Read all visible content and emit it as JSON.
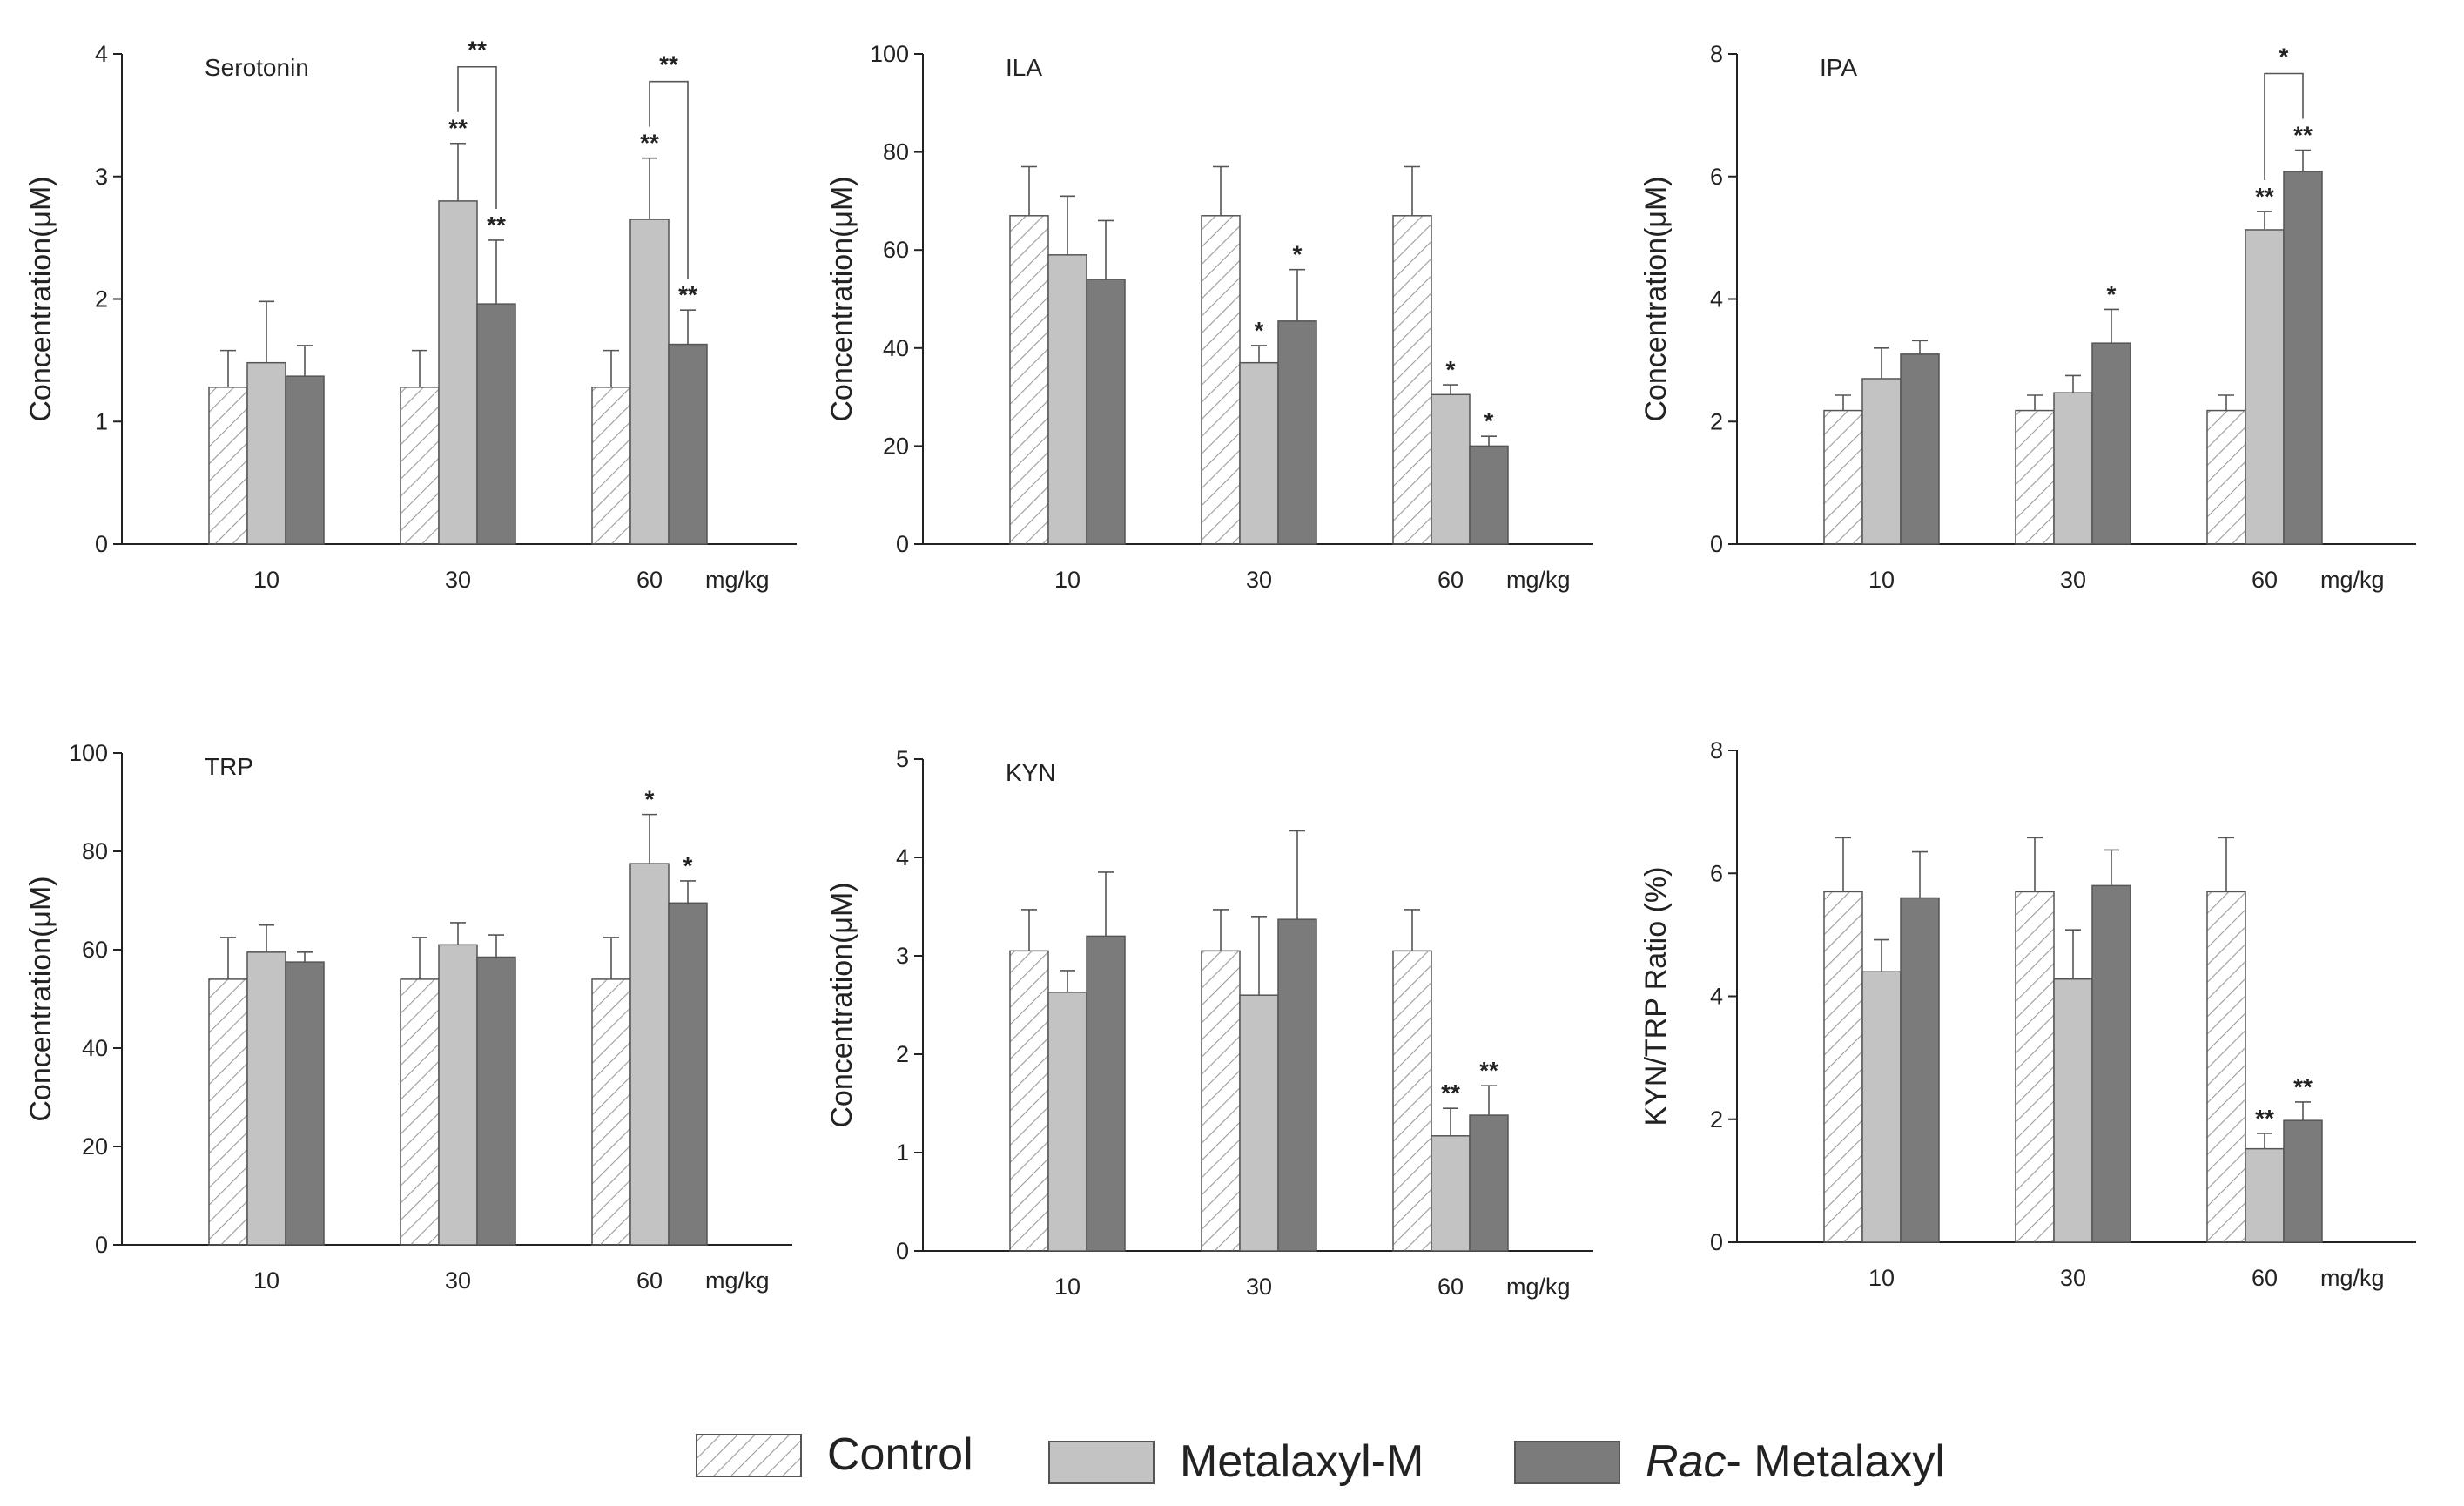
{
  "colors": {
    "control": "#ffffff",
    "metalaxyl_m": "#c3c3c3",
    "rac_metalaxyl": "#7b7b7b",
    "axis": "#222222",
    "hatch": "#9a9a9a"
  },
  "legend": [
    {
      "key": "control",
      "label": "Control"
    },
    {
      "key": "metalaxyl_m",
      "label": "Metalaxyl-M"
    },
    {
      "key": "rac_metalaxyl",
      "italic": "Rac",
      "rest": "- Metalaxyl"
    }
  ],
  "chart_data": [
    {
      "type": "bar",
      "title": "Serotonin",
      "ylabel": "Concentration(μM)",
      "xunit": "mg/kg",
      "categories": [
        "10",
        "30",
        "60"
      ],
      "ylim": [
        0,
        4
      ],
      "yticks": [
        "0",
        "1",
        "2",
        "3",
        "4"
      ],
      "series": [
        {
          "name": "Control",
          "values": [
            1.28,
            1.28,
            1.28
          ],
          "errors": [
            0.3,
            0.3,
            0.3
          ],
          "stars": [
            "",
            "",
            ""
          ]
        },
        {
          "name": "Metalaxyl-M",
          "values": [
            1.48,
            2.8,
            2.65
          ],
          "errors": [
            0.5,
            0.47,
            0.5
          ],
          "stars": [
            "",
            "**",
            "**"
          ]
        },
        {
          "name": "Rac-Metalaxyl",
          "values": [
            1.37,
            1.96,
            1.63
          ],
          "errors": [
            0.25,
            0.52,
            0.28
          ],
          "stars": [
            "",
            "**",
            "**"
          ]
        }
      ],
      "brackets": [
        {
          "category": 1,
          "label": "**"
        },
        {
          "category": 2,
          "label": "**"
        }
      ]
    },
    {
      "type": "bar",
      "title": "ILA",
      "ylabel": "Concentration(μM)",
      "xunit": "mg/kg",
      "categories": [
        "10",
        "30",
        "60"
      ],
      "ylim": [
        0,
        100
      ],
      "yticks": [
        "0",
        "20",
        "40",
        "60",
        "80",
        "100"
      ],
      "series": [
        {
          "name": "Control",
          "values": [
            67,
            67,
            67
          ],
          "errors": [
            10,
            10,
            10
          ],
          "stars": [
            "",
            "",
            ""
          ]
        },
        {
          "name": "Metalaxyl-M",
          "values": [
            59,
            37,
            30.5
          ],
          "errors": [
            12,
            3.5,
            2
          ],
          "stars": [
            "",
            "*",
            "*"
          ]
        },
        {
          "name": "Rac-Metalaxyl",
          "values": [
            54,
            45.5,
            20
          ],
          "errors": [
            12,
            10.5,
            2
          ],
          "stars": [
            "",
            "*",
            "*"
          ]
        }
      ],
      "brackets": []
    },
    {
      "type": "bar",
      "title": "IPA",
      "ylabel": "Concentration(μM)",
      "xunit": "mg/kg",
      "categories": [
        "10",
        "30",
        "60"
      ],
      "ylim": [
        0,
        8
      ],
      "yticks": [
        "0",
        "2",
        "4",
        "6",
        "8"
      ],
      "series": [
        {
          "name": "Control",
          "values": [
            2.18,
            2.18,
            2.18
          ],
          "errors": [
            0.25,
            0.25,
            0.25
          ],
          "stars": [
            "",
            "",
            ""
          ]
        },
        {
          "name": "Metalaxyl-M",
          "values": [
            2.7,
            2.47,
            5.13
          ],
          "errors": [
            0.5,
            0.28,
            0.3
          ],
          "stars": [
            "",
            "",
            "**"
          ]
        },
        {
          "name": "Rac-Metalaxyl",
          "values": [
            3.1,
            3.28,
            6.08
          ],
          "errors": [
            0.22,
            0.55,
            0.35
          ],
          "stars": [
            "",
            "*",
            "**"
          ]
        }
      ],
      "brackets": [
        {
          "category": 2,
          "label": "*"
        }
      ]
    },
    {
      "type": "bar",
      "title": "TRP",
      "ylabel": "Concentration(μM)",
      "xunit": "mg/kg",
      "categories": [
        "10",
        "30",
        "60"
      ],
      "ylim": [
        0,
        100
      ],
      "yticks": [
        "0",
        "20",
        "40",
        "60",
        "80",
        "100"
      ],
      "series": [
        {
          "name": "Control",
          "values": [
            54,
            54,
            54
          ],
          "errors": [
            8.5,
            8.5,
            8.5
          ],
          "stars": [
            "",
            "",
            ""
          ]
        },
        {
          "name": "Metalaxyl-M",
          "values": [
            59.5,
            61,
            77.5
          ],
          "errors": [
            5.5,
            4.5,
            10
          ],
          "stars": [
            "",
            "",
            "*"
          ]
        },
        {
          "name": "Rac-Metalaxyl",
          "values": [
            57.5,
            58.5,
            69.5
          ],
          "errors": [
            2,
            4.5,
            4.5
          ],
          "stars": [
            "",
            "",
            "*"
          ]
        }
      ],
      "brackets": []
    },
    {
      "type": "bar",
      "title": "KYN",
      "ylabel": "Concentration(μM)",
      "xunit": "mg/kg",
      "categories": [
        "10",
        "30",
        "60"
      ],
      "ylim": [
        0,
        5
      ],
      "yticks": [
        "0",
        "1",
        "2",
        "3",
        "4",
        "5"
      ],
      "series": [
        {
          "name": "Control",
          "values": [
            3.05,
            3.05,
            3.05
          ],
          "errors": [
            0.42,
            0.42,
            0.42
          ],
          "stars": [
            "",
            "",
            ""
          ]
        },
        {
          "name": "Metalaxyl-M",
          "values": [
            2.63,
            2.6,
            1.17
          ],
          "errors": [
            0.22,
            0.8,
            0.28
          ],
          "stars": [
            "",
            "",
            "**"
          ]
        },
        {
          "name": "Rac-Metalaxyl",
          "values": [
            3.2,
            3.37,
            1.38
          ],
          "errors": [
            0.65,
            0.9,
            0.3
          ],
          "stars": [
            "",
            "",
            "**"
          ]
        }
      ],
      "brackets": []
    },
    {
      "type": "bar",
      "title": "",
      "ylabel": "KYN/TRP Ratio (%)",
      "xunit": "mg/kg",
      "categories": [
        "10",
        "30",
        "60"
      ],
      "ylim": [
        0,
        8
      ],
      "yticks": [
        "0",
        "2",
        "4",
        "6",
        "8"
      ],
      "series": [
        {
          "name": "Control",
          "values": [
            5.7,
            5.7,
            5.7
          ],
          "errors": [
            0.88,
            0.88,
            0.88
          ],
          "stars": [
            "",
            "",
            ""
          ]
        },
        {
          "name": "Metalaxyl-M",
          "values": [
            4.4,
            4.28,
            1.52
          ],
          "errors": [
            0.52,
            0.8,
            0.25
          ],
          "stars": [
            "",
            "",
            "**"
          ]
        },
        {
          "name": "Rac-Metalaxyl",
          "values": [
            5.6,
            5.8,
            1.98
          ],
          "errors": [
            0.75,
            0.58,
            0.3
          ],
          "stars": [
            "",
            "",
            "**"
          ]
        }
      ],
      "brackets": []
    }
  ]
}
